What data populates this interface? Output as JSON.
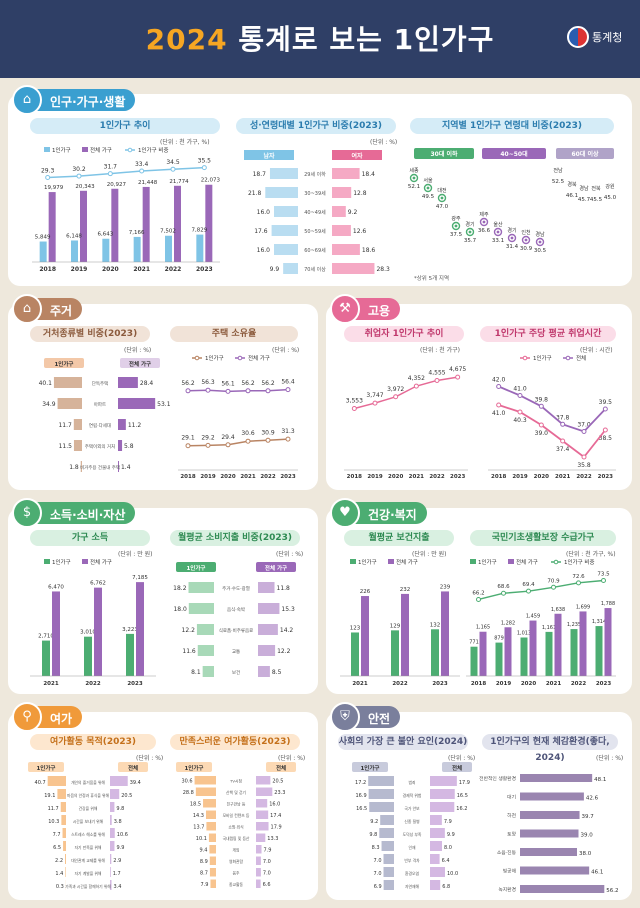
{
  "header": {
    "year": "2024",
    "title": "통계로 보는 1인가구",
    "logo_text": "통계청"
  },
  "colors": {
    "green": "#4cad72",
    "purple": "#9a68b8",
    "blue": "#7fc4e6",
    "brown": "#b98463",
    "navy": "#2f3f66",
    "pink": "#e66a96",
    "orange": "#f09a3a",
    "slate": "#7a7f9c"
  },
  "sections": {
    "pop": "인구·가구·생활",
    "house": "주거",
    "job": "고용",
    "income": "소득·소비·자산",
    "health": "건강·복지",
    "leisure": "여가",
    "safety": "안전"
  },
  "subs": {
    "pop_trend": "1인가구 추이",
    "pop_sexage": "성·연령대별 1인가구 비중(2023)",
    "pop_region": "지역별 1인가구 연령대 비중(2023)",
    "house_type": "거처종류별 비중(2023)",
    "house_own": "주택 소유율",
    "job_emp": "취업자 1인가구 추이",
    "job_hours": "1인가구 주당 평균 취업시간",
    "inc_income": "가구 소득",
    "inc_spend": "월평균 소비지출 비중(2023)",
    "hl_health": "월평균 보건지출",
    "hl_welfare": "국민기초생활보장 수급가구",
    "le_purpose": "여가활동 목적(2023)",
    "le_satisf": "만족스러운 여가활동(2023)",
    "sf_worry": "사회의 가장 큰 불안 요인(2024)",
    "sf_env": "1인가구의 현재 체감환경(좋다, 2024)"
  },
  "units": {
    "pop_trend": "(단위 : 천 가구, %)",
    "pct": "(단위 : %)",
    "thousand_persons": "(단위 : 천 가구)",
    "hours": "(단위 : 시간)",
    "manwon": "(단위 : 만 원)",
    "thousand_hh_pct": "(단위 : 천 가구, %)"
  },
  "legend": {
    "one": "1인가구",
    "all": "전체 가구",
    "share": "1인가구 비중",
    "all_short": "전체",
    "male": "남자",
    "female": "여자"
  },
  "chart_data": [
    {
      "id": "pop_trend",
      "type": "bar",
      "categories": [
        "2018",
        "2019",
        "2020",
        "2021",
        "2022",
        "2023"
      ],
      "series": [
        {
          "name": "1인가구",
          "values": [
            5849,
            6148,
            6643,
            7166,
            7502,
            7829
          ]
        },
        {
          "name": "전체 가구",
          "values": [
            19979,
            20343,
            20927,
            21448,
            21774,
            22073
          ]
        },
        {
          "name": "1인가구 비중",
          "values": [
            29.3,
            30.2,
            31.7,
            33.4,
            34.5,
            35.5
          ]
        }
      ],
      "labels1": [
        "5,849",
        "6,148",
        "6,643",
        "7,166",
        "7,502",
        "7,829"
      ],
      "labels2": [
        "19,979",
        "20,343",
        "20,927",
        "21,448",
        "21,774",
        "22,073"
      ],
      "labels3": [
        "29.3",
        "30.2",
        "31.7",
        "33.4",
        "34.5",
        "35.5"
      ]
    },
    {
      "id": "pop_sexage",
      "type": "bar",
      "categories": [
        "29세 이하",
        "30~39세",
        "40~49세",
        "50~59세",
        "60~69세",
        "70세 이상"
      ],
      "series": [
        {
          "name": "남자",
          "values": [
            18.7,
            21.8,
            16.0,
            17.6,
            16.0,
            9.9
          ]
        },
        {
          "name": "여자",
          "values": [
            18.4,
            12.8,
            9.2,
            12.6,
            18.6,
            28.3
          ]
        }
      ],
      "labels1": [
        "18.7",
        "21.8",
        "16.0",
        "17.6",
        "16.0",
        "9.9"
      ],
      "labels2": [
        "18.4",
        "12.8",
        "9.2",
        "12.6",
        "18.6",
        "28.3"
      ]
    },
    {
      "id": "pop_region",
      "type": "scatter",
      "groups": [
        "30대 이하",
        "40~50대",
        "60대 이상"
      ],
      "points": [
        {
          "g": 0,
          "name": "세종",
          "v": "52.1"
        },
        {
          "g": 0,
          "name": "서울",
          "v": "49.5"
        },
        {
          "g": 0,
          "name": "대전",
          "v": "47.0"
        },
        {
          "g": 0,
          "name": "광주",
          "v": "37.5"
        },
        {
          "g": 0,
          "name": "경기",
          "v": "35.7"
        },
        {
          "g": 1,
          "name": "제주",
          "v": "36.6"
        },
        {
          "g": 1,
          "name": "울산",
          "v": "33.1"
        },
        {
          "g": 1,
          "name": "경기",
          "v": "31.4"
        },
        {
          "g": 1,
          "name": "인천",
          "v": "30.9"
        },
        {
          "g": 1,
          "name": "경남",
          "v": "30.5"
        },
        {
          "g": 2,
          "name": "전남",
          "v": "52.5"
        },
        {
          "g": 2,
          "name": "경북",
          "v": "46.1"
        },
        {
          "g": 2,
          "name": "경남",
          "v": "45.7"
        },
        {
          "g": 2,
          "name": "전북",
          "v": "45.5"
        },
        {
          "g": 2,
          "name": "강원",
          "v": "45.0"
        }
      ],
      "note": "*상위 5개 지역"
    },
    {
      "id": "house_type",
      "type": "bar",
      "categories": [
        "단독주택",
        "아파트",
        "연립·다세대",
        "주택이외의 거처",
        "비거주용 건물내 주택"
      ],
      "series": [
        {
          "name": "1인가구",
          "values": [
            40.1,
            34.9,
            11.7,
            11.5,
            1.8
          ]
        },
        {
          "name": "전체 가구",
          "values": [
            28.4,
            53.1,
            11.2,
            5.8,
            1.4
          ]
        }
      ],
      "labels1": [
        "40.1",
        "34.9",
        "11.7",
        "11.5",
        "1.8"
      ],
      "labels2": [
        "28.4",
        "53.1",
        "11.2",
        "5.8",
        "1.4"
      ]
    },
    {
      "id": "house_own",
      "type": "line",
      "categories": [
        "2018",
        "2019",
        "2020",
        "2021",
        "2022",
        "2023"
      ],
      "series": [
        {
          "name": "1인가구",
          "values": [
            29.1,
            29.2,
            29.4,
            30.6,
            30.9,
            31.3
          ]
        },
        {
          "name": "전체 가구",
          "values": [
            56.2,
            56.3,
            56.1,
            56.2,
            56.2,
            56.4
          ]
        }
      ],
      "labels1": [
        "29.1",
        "29.2",
        "29.4",
        "30.6",
        "30.9",
        "31.3"
      ],
      "labels2": [
        "56.2",
        "56.3",
        "56.1",
        "56.2",
        "56.2",
        "56.4"
      ]
    },
    {
      "id": "job_emp",
      "type": "line",
      "categories": [
        "2018",
        "2019",
        "2020",
        "2021",
        "2022",
        "2023"
      ],
      "series": [
        {
          "name": "취업자 1인가구",
          "values": [
            3553,
            3747,
            3972,
            4352,
            4555,
            4675
          ]
        }
      ],
      "labels1": [
        "3,553",
        "3,747",
        "3,972",
        "4,352",
        "4,555",
        "4,675"
      ]
    },
    {
      "id": "job_hours",
      "type": "line",
      "categories": [
        "2018",
        "2019",
        "2020",
        "2021",
        "2022",
        "2023"
      ],
      "series": [
        {
          "name": "1인가구",
          "values": [
            41.0,
            40.3,
            39.0,
            37.4,
            35.8,
            38.5
          ]
        },
        {
          "name": "전체",
          "values": [
            42.0,
            41.0,
            39.8,
            37.8,
            37.0,
            39.5
          ]
        }
      ],
      "labels1": [
        "41.0",
        "40.3",
        "39.0",
        "37.4",
        "35.8",
        "38.5"
      ],
      "labels2": [
        "42.0",
        "41.0",
        "39.8",
        "37.8",
        "37.0",
        "39.5"
      ]
    },
    {
      "id": "inc_income",
      "type": "bar",
      "categories": [
        "2021",
        "2022",
        "2023"
      ],
      "series": [
        {
          "name": "1인가구",
          "values": [
            2710,
            3010,
            3223
          ]
        },
        {
          "name": "전체 가구",
          "values": [
            6470,
            6762,
            7185
          ]
        }
      ],
      "labels1": [
        "2,710",
        "3,010",
        "3,223"
      ],
      "labels2": [
        "6,470",
        "6,762",
        "7,185"
      ]
    },
    {
      "id": "inc_spend",
      "type": "bar",
      "categories": [
        "주거·수도·광열",
        "음식·숙박",
        "식료품·비주류음료",
        "교통",
        "보건"
      ],
      "series": [
        {
          "name": "1인가구",
          "values": [
            18.2,
            18.0,
            12.2,
            11.6,
            8.1
          ]
        },
        {
          "name": "전체 가구",
          "values": [
            11.8,
            15.3,
            14.2,
            12.2,
            8.5
          ]
        }
      ],
      "labels1": [
        "18.2",
        "18.0",
        "12.2",
        "11.6",
        "8.1"
      ],
      "labels2": [
        "11.8",
        "15.3",
        "14.2",
        "12.2",
        "8.5"
      ]
    },
    {
      "id": "hl_health",
      "type": "bar",
      "categories": [
        "2021",
        "2022",
        "2023"
      ],
      "series": [
        {
          "name": "1인가구",
          "values": [
            123,
            129,
            132
          ]
        },
        {
          "name": "전체 가구",
          "values": [
            226,
            232,
            239
          ]
        }
      ],
      "labels1": [
        "123",
        "129",
        "132"
      ],
      "labels2": [
        "226",
        "232",
        "239"
      ]
    },
    {
      "id": "hl_welfare",
      "type": "bar",
      "categories": [
        "2018",
        "2019",
        "2020",
        "2021",
        "2022",
        "2023"
      ],
      "series": [
        {
          "name": "1인가구",
          "values": [
            771,
            879,
            1013,
            1161,
            1235,
            1314
          ]
        },
        {
          "name": "전체 가구",
          "values": [
            1165,
            1282,
            1459,
            1638,
            1699,
            1788
          ]
        },
        {
          "name": "1인가구 비중",
          "values": [
            66.2,
            68.6,
            69.4,
            70.9,
            72.6,
            73.5
          ]
        }
      ],
      "labels1": [
        "771",
        "879",
        "1,013",
        "1,161",
        "1,235",
        "1,314"
      ],
      "labels2": [
        "1,165",
        "1,282",
        "1,459",
        "1,638",
        "1,699",
        "1,788"
      ],
      "labels3": [
        "66.2",
        "68.6",
        "69.4",
        "70.9",
        "72.6",
        "73.5"
      ]
    },
    {
      "id": "le_purpose",
      "type": "bar",
      "categories": [
        "개인의 즐거움을 위해",
        "마음의 안정과 휴식을 위해",
        "건강을 위해",
        "시간을 보내기 위해",
        "스트레스 해소를 위해",
        "자기 만족을 위해",
        "대인관계 교제를 위해",
        "자기 계발을 위해",
        "가족과 시간을 함께하기 위해"
      ],
      "series": [
        {
          "name": "1인가구",
          "values": [
            40.7,
            19.1,
            11.7,
            10.3,
            7.7,
            6.5,
            2.2,
            1.4,
            0.3
          ]
        },
        {
          "name": "전체",
          "values": [
            39.4,
            20.5,
            9.8,
            3.8,
            10.6,
            9.9,
            2.9,
            1.7,
            3.4
          ]
        }
      ],
      "labels1": [
        "40.7",
        "19.1",
        "11.7",
        "10.3",
        "7.7",
        "6.5",
        "2.2",
        "1.4",
        "0.3"
      ],
      "labels2": [
        "39.4",
        "20.5",
        "9.8",
        "3.8",
        "10.6",
        "9.9",
        "2.9",
        "1.7",
        "3.4"
      ]
    },
    {
      "id": "le_satisf",
      "type": "bar",
      "categories": [
        "TV시청",
        "산책 및 걷기",
        "친구만남 등",
        "모바일 컨텐츠 등",
        "쇼핑·외식",
        "국내캠핑 및 등산",
        "게임",
        "영화관람",
        "음주",
        "종교활동"
      ],
      "series": [
        {
          "name": "1인가구",
          "values": [
            30.6,
            28.8,
            18.5,
            14.3,
            13.7,
            10.1,
            9.4,
            8.9,
            8.7,
            7.9
          ]
        },
        {
          "name": "전체",
          "values": [
            20.5,
            23.3,
            16.0,
            17.4,
            17.9,
            13.3,
            7.9,
            7.0,
            7.0,
            6.6
          ]
        }
      ],
      "labels1": [
        "30.6",
        "28.8",
        "18.5",
        "14.3",
        "13.7",
        "10.1",
        "9.4",
        "8.9",
        "8.7",
        "7.9"
      ],
      "labels2": [
        "20.5",
        "23.3",
        "16.0",
        "17.4",
        "17.9",
        "13.3",
        "7.9",
        "7.0",
        "7.0",
        "6.6"
      ]
    },
    {
      "id": "sf_worry",
      "type": "bar",
      "categories": [
        "범죄",
        "경제적 위험",
        "국가 안보",
        "신종 질병",
        "도덕성 부족",
        "인재",
        "빈부 격차",
        "환경오염",
        "자연재해"
      ],
      "series": [
        {
          "name": "1인가구",
          "values": [
            17.2,
            16.9,
            16.5,
            9.2,
            9.8,
            8.3,
            7.0,
            7.0,
            6.9
          ]
        },
        {
          "name": "전체",
          "values": [
            17.9,
            16.5,
            16.2,
            7.9,
            9.9,
            8.0,
            6.4,
            10.0,
            6.8
          ]
        }
      ],
      "labels1": [
        "17.2",
        "16.9",
        "16.5",
        "9.2",
        "9.8",
        "8.3",
        "7.0",
        "7.0",
        "6.9"
      ],
      "labels2": [
        "17.9",
        "16.5",
        "16.2",
        "7.9",
        "9.9",
        "8.0",
        "6.4",
        "10.0",
        "6.8"
      ]
    },
    {
      "id": "sf_env",
      "type": "bar",
      "categories": [
        "전반적인 생활환경",
        "대기",
        "하천",
        "토양",
        "소음·진동",
        "빛공해",
        "녹지환경"
      ],
      "series": [
        {
          "name": "1인가구",
          "values": [
            48.1,
            42.6,
            39.7,
            39.0,
            38.0,
            46.1,
            56.2
          ]
        }
      ],
      "labels1": [
        "48.1",
        "42.6",
        "39.7",
        "39.0",
        "38.0",
        "46.1",
        "56.2"
      ]
    }
  ]
}
